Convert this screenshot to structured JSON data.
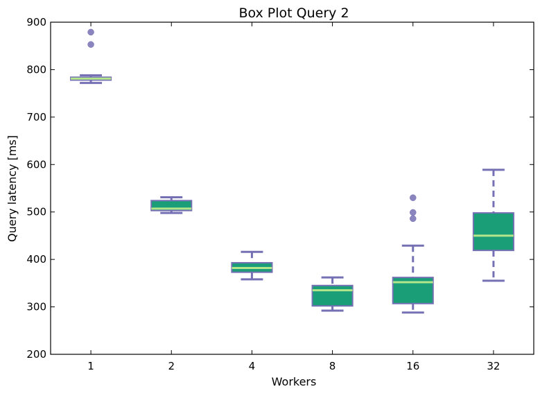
{
  "chart_data": {
    "type": "box",
    "title": "Box Plot Query 2",
    "xlabel": "Workers",
    "ylabel": "Query latency [ms]",
    "ylim": [
      200,
      900
    ],
    "yticks": [
      200,
      300,
      400,
      500,
      600,
      700,
      800,
      900
    ],
    "categories": [
      "1",
      "2",
      "4",
      "8",
      "16",
      "32"
    ],
    "grid": false,
    "boxes": [
      {
        "category": "1",
        "whisker_low": 772,
        "q1": 778,
        "median": 781,
        "q3": 784,
        "whisker_high": 788,
        "outliers": [
          853,
          879
        ]
      },
      {
        "category": "2",
        "whisker_low": 498,
        "q1": 503,
        "median": 507,
        "q3": 524,
        "whisker_high": 531,
        "outliers": []
      },
      {
        "category": "4",
        "whisker_low": 358,
        "q1": 373,
        "median": 382,
        "q3": 393,
        "whisker_high": 416,
        "outliers": []
      },
      {
        "category": "8",
        "whisker_low": 292,
        "q1": 302,
        "median": 335,
        "q3": 345,
        "whisker_high": 362,
        "outliers": []
      },
      {
        "category": "16",
        "whisker_low": 288,
        "q1": 307,
        "median": 352,
        "q3": 362,
        "whisker_high": 429,
        "outliers": [
          486,
          499,
          530
        ]
      },
      {
        "category": "32",
        "whisker_low": 355,
        "q1": 419,
        "median": 450,
        "q3": 498,
        "whisker_high": 589,
        "outliers": []
      }
    ],
    "colors": {
      "box_fill": "#1a9e77",
      "box_edge": "#7570b3",
      "median": "#b3e68a",
      "whisker": "#7570b3",
      "outlier": "#7570b3"
    }
  }
}
